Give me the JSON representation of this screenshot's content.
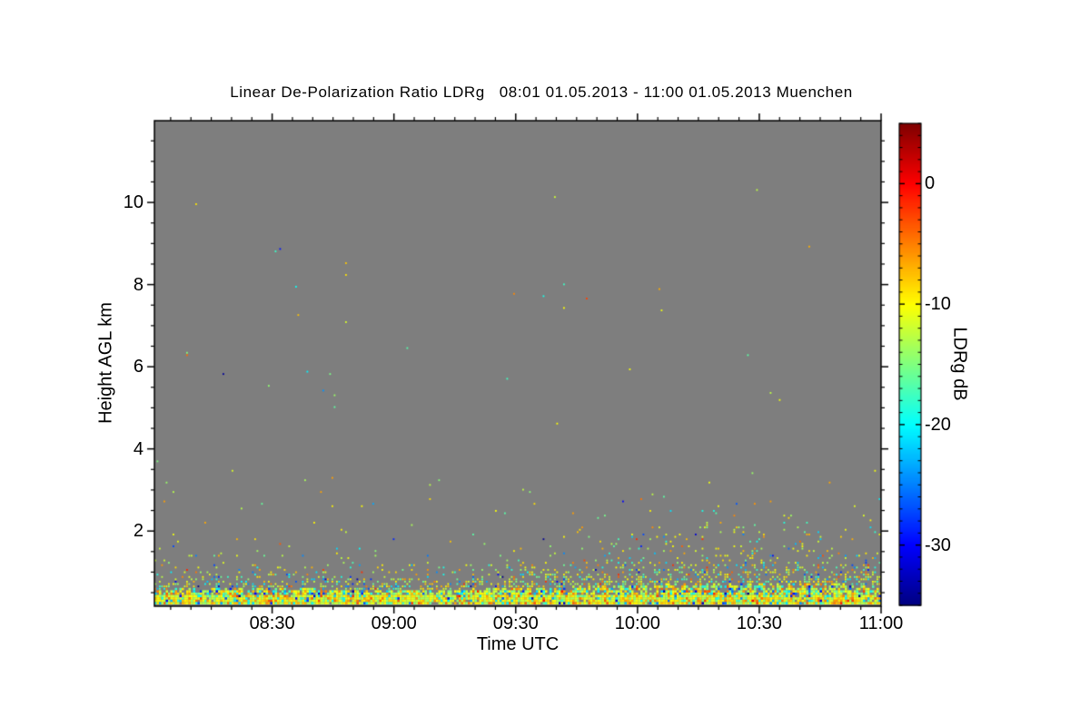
{
  "chart_data": {
    "type": "heatmap",
    "title": "Linear De-Polarization Ratio LDRg   08:01 01.05.2013 - 11:00 01.05.2013 Muenchen",
    "xlabel": "Time UTC",
    "ylabel": "Height AGL km",
    "x_axis": {
      "start_min": 481,
      "end_min": 660,
      "start_label": "08:01",
      "end_label": "11:00",
      "major_ticks": [
        {
          "label": "08:30",
          "min": 510
        },
        {
          "label": "09:00",
          "min": 540
        },
        {
          "label": "09:30",
          "min": 570
        },
        {
          "label": "10:00",
          "min": 600
        },
        {
          "label": "10:30",
          "min": 630
        },
        {
          "label": "11:00",
          "min": 660
        }
      ],
      "minor_step_min": 5
    },
    "y_axis": {
      "start_km": 0.17,
      "end_km": 11.99,
      "major_ticks": [
        2,
        4,
        6,
        8,
        10
      ],
      "minor_step_km": 0.5
    },
    "colorbar": {
      "label": "LDRg dB",
      "range_db": [
        -35,
        5
      ],
      "major_ticks": [
        0,
        -10,
        -20,
        -30
      ],
      "minor_step_db": 1,
      "colormap": "jet"
    },
    "colors": {
      "plot_background": "#7e7e7e",
      "frame": "#000000",
      "page_background": "#ffffff",
      "text": "#000000"
    },
    "speckle_model": {
      "seed": 20130501,
      "cell_w": 2.5,
      "cell_h": 2.6,
      "surface_layer": {
        "top_km": 0.44,
        "p": 0.97,
        "value_modes": [
          {
            "w": 0.56,
            "mean": -9.5,
            "sd": 2.4
          },
          {
            "w": 0.2,
            "mean": -13.0,
            "sd": 1.6
          },
          {
            "w": 0.13,
            "mean": -18.5,
            "sd": 2.6
          },
          {
            "w": 0.07,
            "mean": -4.5,
            "sd": 2.2
          },
          {
            "w": 0.04,
            "mean": -27.0,
            "sd": 4.0
          }
        ]
      },
      "decay_layer": {
        "amp": 0.85,
        "scale_km_start": 0.2,
        "scale_km_end": 0.52,
        "wave_amp": 0.07,
        "wave_freq": 9.0,
        "wave_phase": 1.1
      },
      "sparse_background": [
        {
          "max_km": 3.4,
          "p": 0.004
        },
        {
          "max_km": 10.3,
          "p": 0.0006
        }
      ],
      "aloft_value_modes": [
        {
          "w": 0.44,
          "mean": -11.5,
          "sd": 2.2
        },
        {
          "w": 0.2,
          "mean": -16.5,
          "sd": 2.5
        },
        {
          "w": 0.2,
          "mean": -7.0,
          "sd": 2.5
        },
        {
          "w": 0.1,
          "mean": -21.5,
          "sd": 3.0
        },
        {
          "w": 0.06,
          "mean": -28.0,
          "sd": 3.5
        }
      ]
    }
  }
}
